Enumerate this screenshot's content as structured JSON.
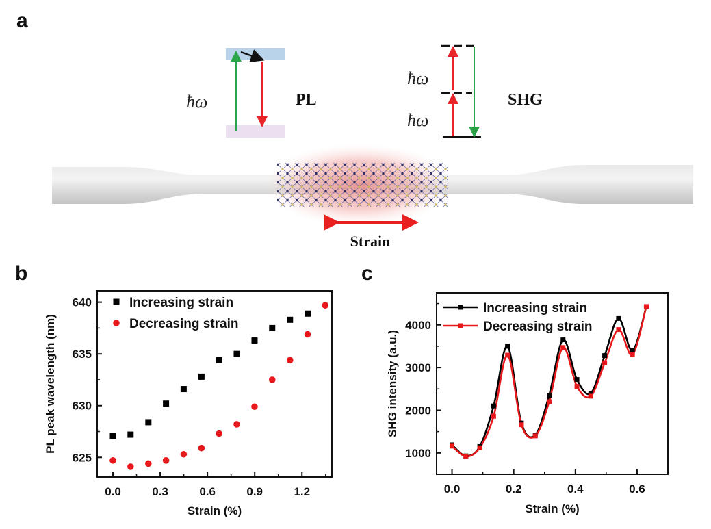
{
  "figure": {
    "panels": {
      "a": {
        "label": "a",
        "pl_diagram": {
          "photon_symbol": "ħω",
          "label": "PL",
          "upper_band_color": "#b9d3ea",
          "lower_band_color": "#ebe0ef",
          "excitation_color": "#2ca44a",
          "emission_color": "#e8262a"
        },
        "shg_diagram": {
          "photon_symbol_1": "ħω",
          "photon_symbol_2": "ħω",
          "label": "SHG",
          "pump_color": "#e8262a",
          "shg_color": "#2ca44a"
        },
        "strain_label": "Strain",
        "strain_arrow_color": "#e8201f"
      },
      "b": {
        "label": "b"
      },
      "c": {
        "label": "c"
      }
    }
  },
  "chart_data": [
    {
      "panel": "b",
      "type": "scatter",
      "title": "",
      "xlabel": "Strain (%)",
      "ylabel": "PL peak wavelength (nm)",
      "xlim": [
        -0.1,
        1.39
      ],
      "ylim": [
        623.1,
        641.1
      ],
      "xticks": [
        0.0,
        0.3,
        0.6,
        0.9,
        1.2
      ],
      "xtick_labels": [
        "0.0",
        "0.3",
        "0.6",
        "0.9",
        "1.2"
      ],
      "yticks": [
        625,
        630,
        635,
        640
      ],
      "ytick_labels": [
        "625",
        "630",
        "635",
        "640"
      ],
      "grid": false,
      "legend_position": "top-left",
      "series": [
        {
          "name": "Increasing strain",
          "marker": "square",
          "color": "#000000",
          "x": [
            0.0,
            0.112,
            0.225,
            0.337,
            0.449,
            0.562,
            0.674,
            0.786,
            0.899,
            1.011,
            1.124,
            1.236
          ],
          "y": [
            627.1,
            627.2,
            628.4,
            630.2,
            631.6,
            632.8,
            634.4,
            635.0,
            636.3,
            637.5,
            638.3,
            638.9
          ]
        },
        {
          "name": "Decreasing strain",
          "marker": "circle",
          "color": "#e8191c",
          "x": [
            0.0,
            0.112,
            0.225,
            0.337,
            0.449,
            0.562,
            0.674,
            0.786,
            0.899,
            1.011,
            1.124,
            1.236,
            1.348
          ],
          "y": [
            624.7,
            624.1,
            624.4,
            624.7,
            625.3,
            625.9,
            627.3,
            628.2,
            629.9,
            632.5,
            634.4,
            636.9,
            639.7
          ]
        }
      ]
    },
    {
      "panel": "c",
      "type": "line",
      "title": "",
      "xlabel": "Strain (%)",
      "ylabel": "SHG intensity (a.u.)",
      "xlim": [
        -0.05,
        0.7
      ],
      "ylim": [
        500,
        4750
      ],
      "xticks": [
        0.0,
        0.2,
        0.4,
        0.6
      ],
      "xtick_labels": [
        "0.0",
        "0.2",
        "0.4",
        "0.6"
      ],
      "yticks": [
        1000,
        2000,
        3000,
        4000
      ],
      "ytick_labels": [
        "1000",
        "2000",
        "3000",
        "4000"
      ],
      "grid": false,
      "legend_position": "top-left",
      "series": [
        {
          "name": "Increasing strain",
          "marker": "square",
          "color": "#000000",
          "x": [
            0.0,
            0.045,
            0.09,
            0.135,
            0.18,
            0.225,
            0.27,
            0.315,
            0.36,
            0.405,
            0.45,
            0.495,
            0.54,
            0.585,
            0.63
          ],
          "y": [
            1190,
            930,
            1150,
            2100,
            3500,
            1700,
            1420,
            2350,
            3650,
            2720,
            2400,
            3280,
            4150,
            3400,
            4430
          ]
        },
        {
          "name": "Decreasing strain",
          "marker": "square",
          "color": "#e8191c",
          "x": [
            0.0,
            0.045,
            0.09,
            0.135,
            0.18,
            0.225,
            0.27,
            0.315,
            0.36,
            0.405,
            0.45,
            0.495,
            0.54,
            0.585,
            0.63
          ],
          "y": [
            1160,
            920,
            1120,
            1860,
            3290,
            1660,
            1400,
            2200,
            3470,
            2560,
            2330,
            3110,
            3890,
            3300,
            4430
          ]
        }
      ]
    }
  ]
}
